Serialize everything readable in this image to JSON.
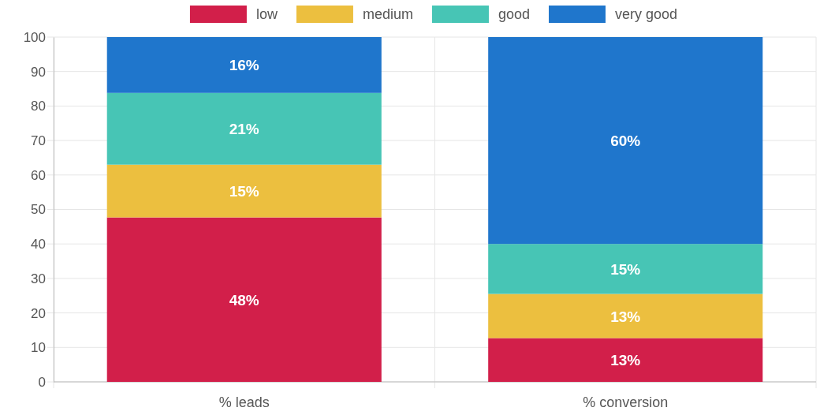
{
  "chart_data": {
    "type": "bar",
    "stacked": true,
    "categories": [
      "% leads",
      "% conversion"
    ],
    "series": [
      {
        "name": "low",
        "color": "#d21f4a",
        "values": [
          47.7,
          12.7
        ],
        "value_labels": [
          "48%",
          "13%"
        ]
      },
      {
        "name": "medium",
        "color": "#ecbf3f",
        "values": [
          15.3,
          12.8
        ],
        "value_labels": [
          "15%",
          "13%"
        ]
      },
      {
        "name": "good",
        "color": "#47c5b5",
        "values": [
          20.8,
          14.5
        ],
        "value_labels": [
          "21%",
          "15%"
        ]
      },
      {
        "name": "very good",
        "color": "#1f76cc",
        "values": [
          16.2,
          60
        ],
        "value_labels": [
          "16%",
          "60%"
        ]
      }
    ],
    "ylim": [
      0,
      100
    ],
    "yticks": [
      0,
      10,
      20,
      30,
      40,
      50,
      60,
      70,
      80,
      90,
      100
    ],
    "grid": true,
    "legend": "top"
  }
}
